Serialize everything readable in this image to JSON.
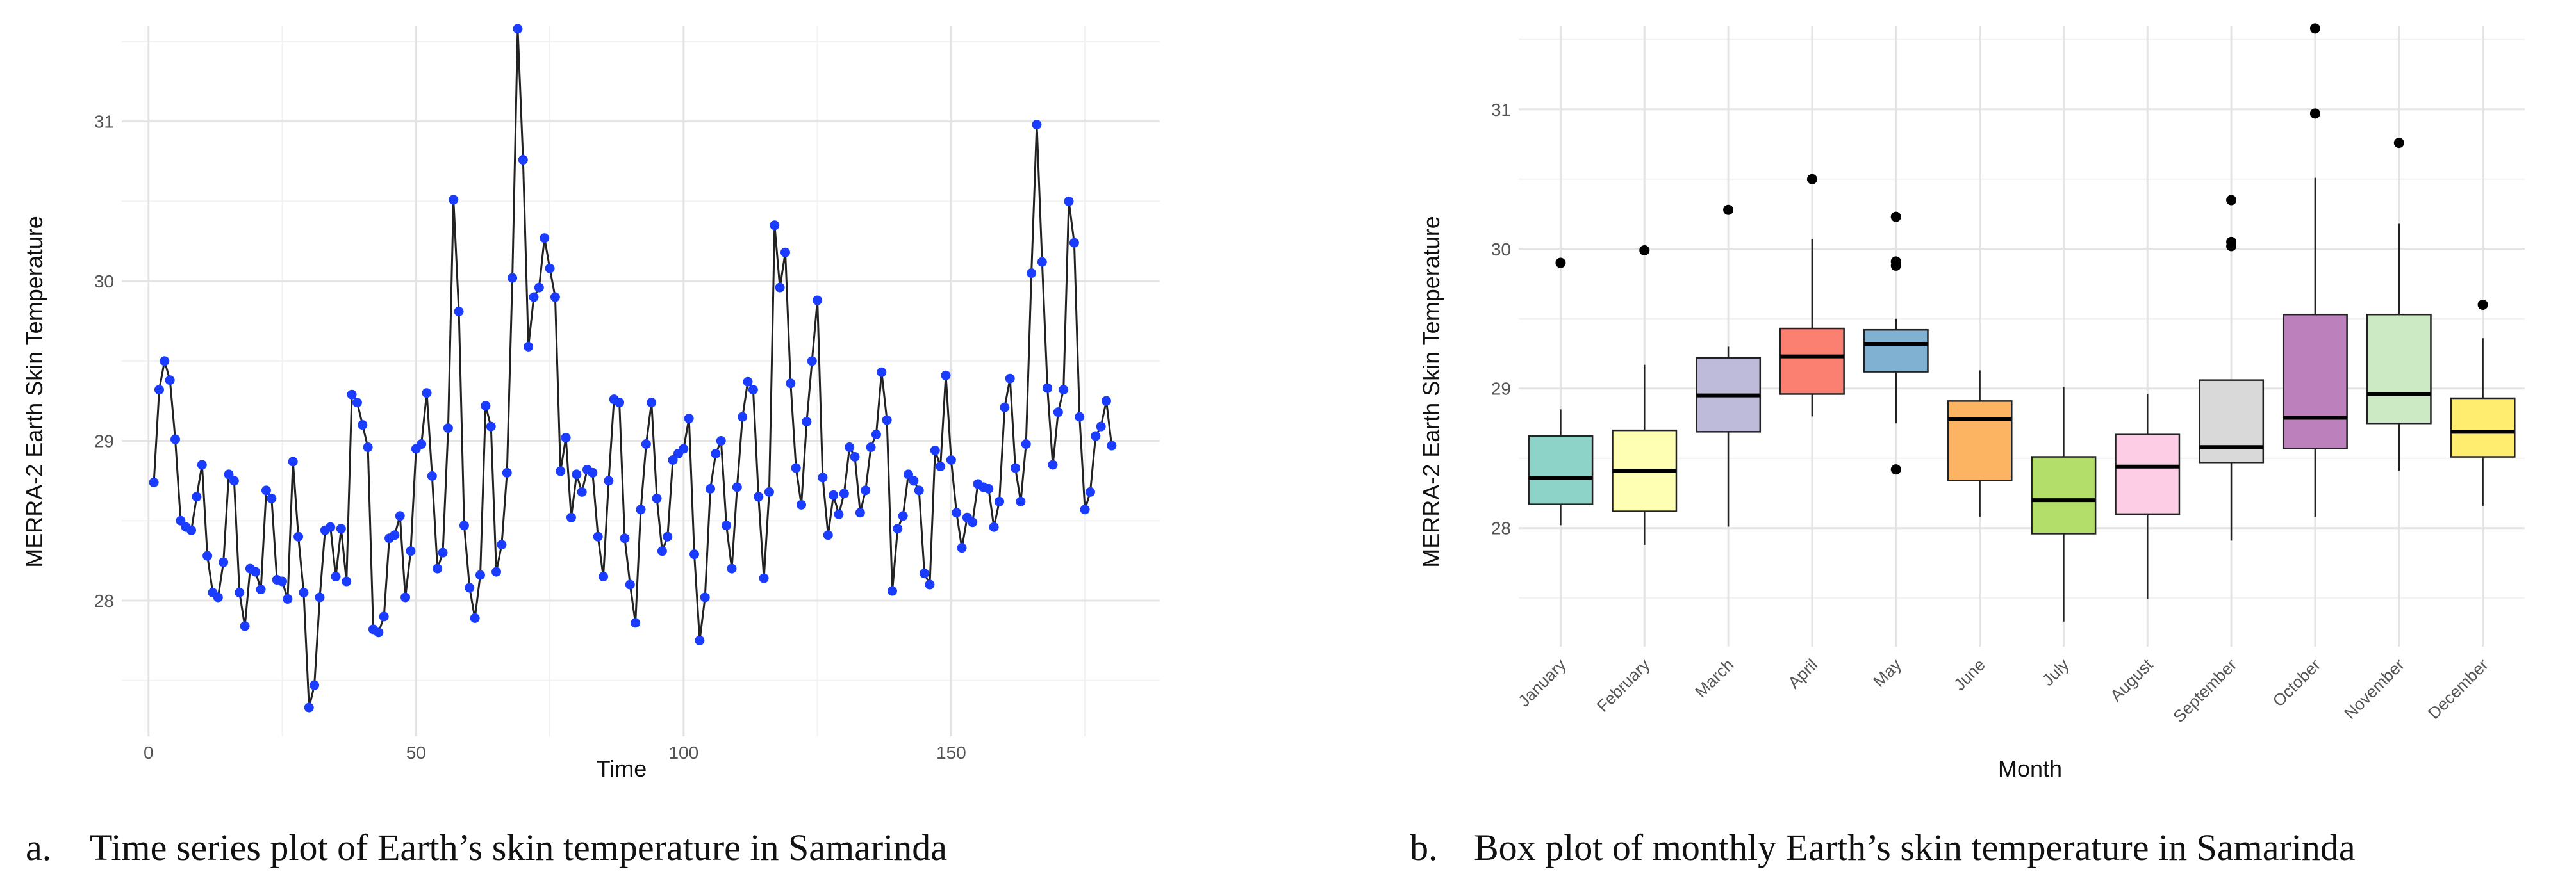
{
  "chart_data": [
    {
      "type": "line",
      "title": "",
      "xlabel": "Time",
      "ylabel": "MERRA-2 Earth Skin Temperature",
      "xlim": [
        -5,
        189
      ],
      "ylim": [
        27.15,
        31.6
      ],
      "xticks": [
        0,
        50,
        100,
        150
      ],
      "yticks": [
        28,
        29,
        30,
        31
      ],
      "line_color": "#222222",
      "point_color": "#1a3cff",
      "x": [
        1,
        2,
        3,
        4,
        5,
        6,
        7,
        8,
        9,
        10,
        11,
        12,
        13,
        14,
        15,
        16,
        17,
        18,
        19,
        20,
        21,
        22,
        23,
        24,
        25,
        26,
        27,
        28,
        29,
        30,
        31,
        32,
        33,
        34,
        35,
        36,
        37,
        38,
        39,
        40,
        41,
        42,
        43,
        44,
        45,
        46,
        47,
        48,
        49,
        50,
        51,
        52,
        53,
        54,
        55,
        56,
        57,
        58,
        59,
        60,
        61,
        62,
        63,
        64,
        65,
        66,
        67,
        68,
        69,
        70,
        71,
        72,
        73,
        74,
        75,
        76,
        77,
        78,
        79,
        80,
        81,
        82,
        83,
        84,
        85,
        86,
        87,
        88,
        89,
        90,
        91,
        92,
        93,
        94,
        95,
        96,
        97,
        98,
        99,
        100,
        101,
        102,
        103,
        104,
        105,
        106,
        107,
        108,
        109,
        110,
        111,
        112,
        113,
        114,
        115,
        116,
        117,
        118,
        119,
        120,
        121,
        122,
        123,
        124,
        125,
        126,
        127,
        128,
        129,
        130,
        131,
        132,
        133,
        134,
        135,
        136,
        137,
        138,
        139,
        140,
        141,
        142,
        143,
        144,
        145,
        146,
        147,
        148,
        149,
        150,
        151,
        152,
        153,
        154,
        155,
        156,
        157,
        158,
        159,
        160,
        161,
        162,
        163,
        164,
        165,
        166,
        167,
        168,
        169,
        170,
        171,
        172,
        173,
        174,
        175,
        176,
        177,
        178,
        179,
        180
      ],
      "values": [
        28.74,
        29.32,
        29.5,
        29.38,
        29.01,
        28.5,
        28.46,
        28.44,
        28.65,
        28.85,
        28.28,
        28.05,
        28.02,
        28.24,
        28.79,
        28.75,
        28.05,
        27.84,
        28.2,
        28.18,
        28.07,
        28.69,
        28.64,
        28.13,
        28.12,
        28.01,
        28.87,
        28.4,
        28.05,
        27.33,
        27.47,
        28.02,
        28.44,
        28.46,
        28.15,
        28.45,
        28.12,
        29.29,
        29.24,
        29.1,
        28.96,
        27.82,
        27.8,
        27.9,
        28.39,
        28.41,
        28.53,
        28.02,
        28.31,
        28.95,
        28.98,
        29.3,
        28.78,
        28.2,
        28.3,
        29.08,
        30.51,
        29.81,
        28.47,
        28.08,
        27.89,
        28.16,
        29.22,
        29.09,
        28.18,
        28.35,
        28.8,
        30.02,
        31.58,
        30.76,
        29.59,
        29.9,
        29.96,
        30.27,
        30.08,
        29.9,
        28.81,
        29.02,
        28.52,
        28.79,
        28.68,
        28.82,
        28.8,
        28.4,
        28.15,
        28.75,
        29.26,
        29.24,
        28.39,
        28.1,
        27.86,
        28.57,
        28.98,
        29.24,
        28.64,
        28.31,
        28.4,
        28.88,
        28.92,
        28.95,
        29.14,
        28.29,
        27.75,
        28.02,
        28.7,
        28.92,
        29.0,
        28.47,
        28.2,
        28.71,
        29.15,
        29.37,
        29.32,
        28.65,
        28.14,
        28.68,
        30.35,
        29.96,
        30.18,
        29.36,
        28.83,
        28.6,
        29.12,
        29.5,
        29.88,
        28.77,
        28.41,
        28.66,
        28.54,
        28.67,
        28.96,
        28.9,
        28.55,
        28.69,
        28.96,
        29.04,
        29.43,
        29.13,
        28.06,
        28.45,
        28.53,
        28.79,
        28.75,
        28.69,
        28.17,
        28.1,
        28.94,
        28.84,
        29.41,
        28.88,
        28.55,
        28.33,
        28.52,
        28.49,
        28.73,
        28.71,
        28.7,
        28.46,
        28.62,
        29.21,
        29.39,
        28.83,
        28.62,
        28.98,
        30.05,
        30.98,
        30.12,
        29.33,
        28.85,
        29.18,
        29.32,
        30.5,
        30.24,
        29.15,
        28.57,
        28.68,
        29.03,
        29.09,
        29.25,
        28.97
      ]
    },
    {
      "type": "box",
      "title": "",
      "xlabel": "Month",
      "ylabel": "MERRA-2 Earth Skin Temperature",
      "ylim": [
        27.15,
        31.6
      ],
      "yticks": [
        28,
        29,
        30,
        31
      ],
      "categories": [
        "January",
        "February",
        "March",
        "April",
        "May",
        "June",
        "July",
        "August",
        "September",
        "October",
        "November",
        "December"
      ],
      "boxes": [
        {
          "q1": 28.17,
          "median": 28.36,
          "q3": 28.66,
          "whisker_low": 28.02,
          "whisker_high": 28.85,
          "outliers": [
            29.9
          ],
          "color": "#8dd3c7"
        },
        {
          "q1": 28.12,
          "median": 28.41,
          "q3": 28.7,
          "whisker_low": 27.88,
          "whisker_high": 29.17,
          "outliers": [
            29.99
          ],
          "color": "#ffffb3"
        },
        {
          "q1": 28.69,
          "median": 28.95,
          "q3": 29.22,
          "whisker_low": 28.01,
          "whisker_high": 29.3,
          "outliers": [
            30.28
          ],
          "color": "#bebada"
        },
        {
          "q1": 28.96,
          "median": 29.23,
          "q3": 29.43,
          "whisker_low": 28.8,
          "whisker_high": 30.07,
          "outliers": [
            30.5
          ],
          "color": "#fb8072"
        },
        {
          "q1": 29.12,
          "median": 29.32,
          "q3": 29.42,
          "whisker_low": 28.75,
          "whisker_high": 29.5,
          "outliers": [
            30.23,
            29.91,
            29.88,
            28.42
          ],
          "color": "#80b1d3"
        },
        {
          "q1": 28.34,
          "median": 28.78,
          "q3": 28.91,
          "whisker_low": 28.08,
          "whisker_high": 29.13,
          "outliers": [],
          "color": "#fdb462"
        },
        {
          "q1": 27.96,
          "median": 28.2,
          "q3": 28.51,
          "whisker_low": 27.33,
          "whisker_high": 29.01,
          "outliers": [],
          "color": "#b3de69"
        },
        {
          "q1": 28.1,
          "median": 28.44,
          "q3": 28.67,
          "whisker_low": 27.49,
          "whisker_high": 28.96,
          "outliers": [],
          "color": "#fccde5"
        },
        {
          "q1": 28.47,
          "median": 28.58,
          "q3": 29.06,
          "whisker_low": 27.91,
          "whisker_high": 29.06,
          "outliers": [
            30.35,
            30.05,
            30.02
          ],
          "color": "#d9d9d9"
        },
        {
          "q1": 28.57,
          "median": 28.79,
          "q3": 29.53,
          "whisker_low": 28.08,
          "whisker_high": 30.51,
          "outliers": [
            31.58,
            30.97
          ],
          "color": "#bc80bd"
        },
        {
          "q1": 28.75,
          "median": 28.96,
          "q3": 29.53,
          "whisker_low": 28.41,
          "whisker_high": 30.18,
          "outliers": [
            30.76
          ],
          "color": "#ccebc5"
        },
        {
          "q1": 28.51,
          "median": 28.69,
          "q3": 28.93,
          "whisker_low": 28.16,
          "whisker_high": 29.36,
          "outliers": [
            29.6
          ],
          "color": "#ffed6f"
        }
      ]
    }
  ],
  "captions": {
    "a_label": "a.",
    "a_text": "Time series plot of Earth’s skin temperature in Samarinda",
    "b_label": "b.",
    "b_text": "Box plot of monthly Earth’s skin temperature in Samarinda"
  }
}
